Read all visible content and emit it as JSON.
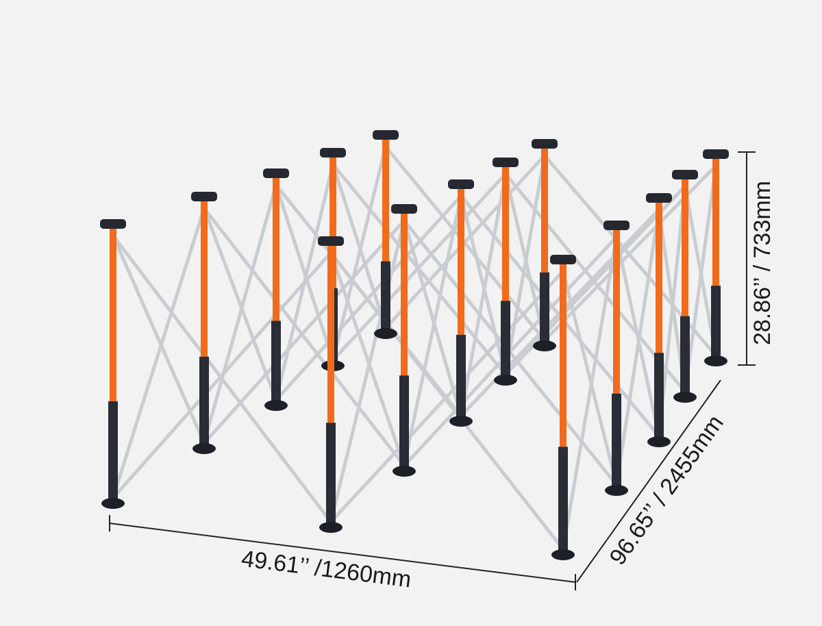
{
  "dimensions": {
    "width": "49.61’’ /1260mm",
    "depth": "96.65’’ / 2455mm",
    "height": "28.86’’ / 733mm"
  }
}
